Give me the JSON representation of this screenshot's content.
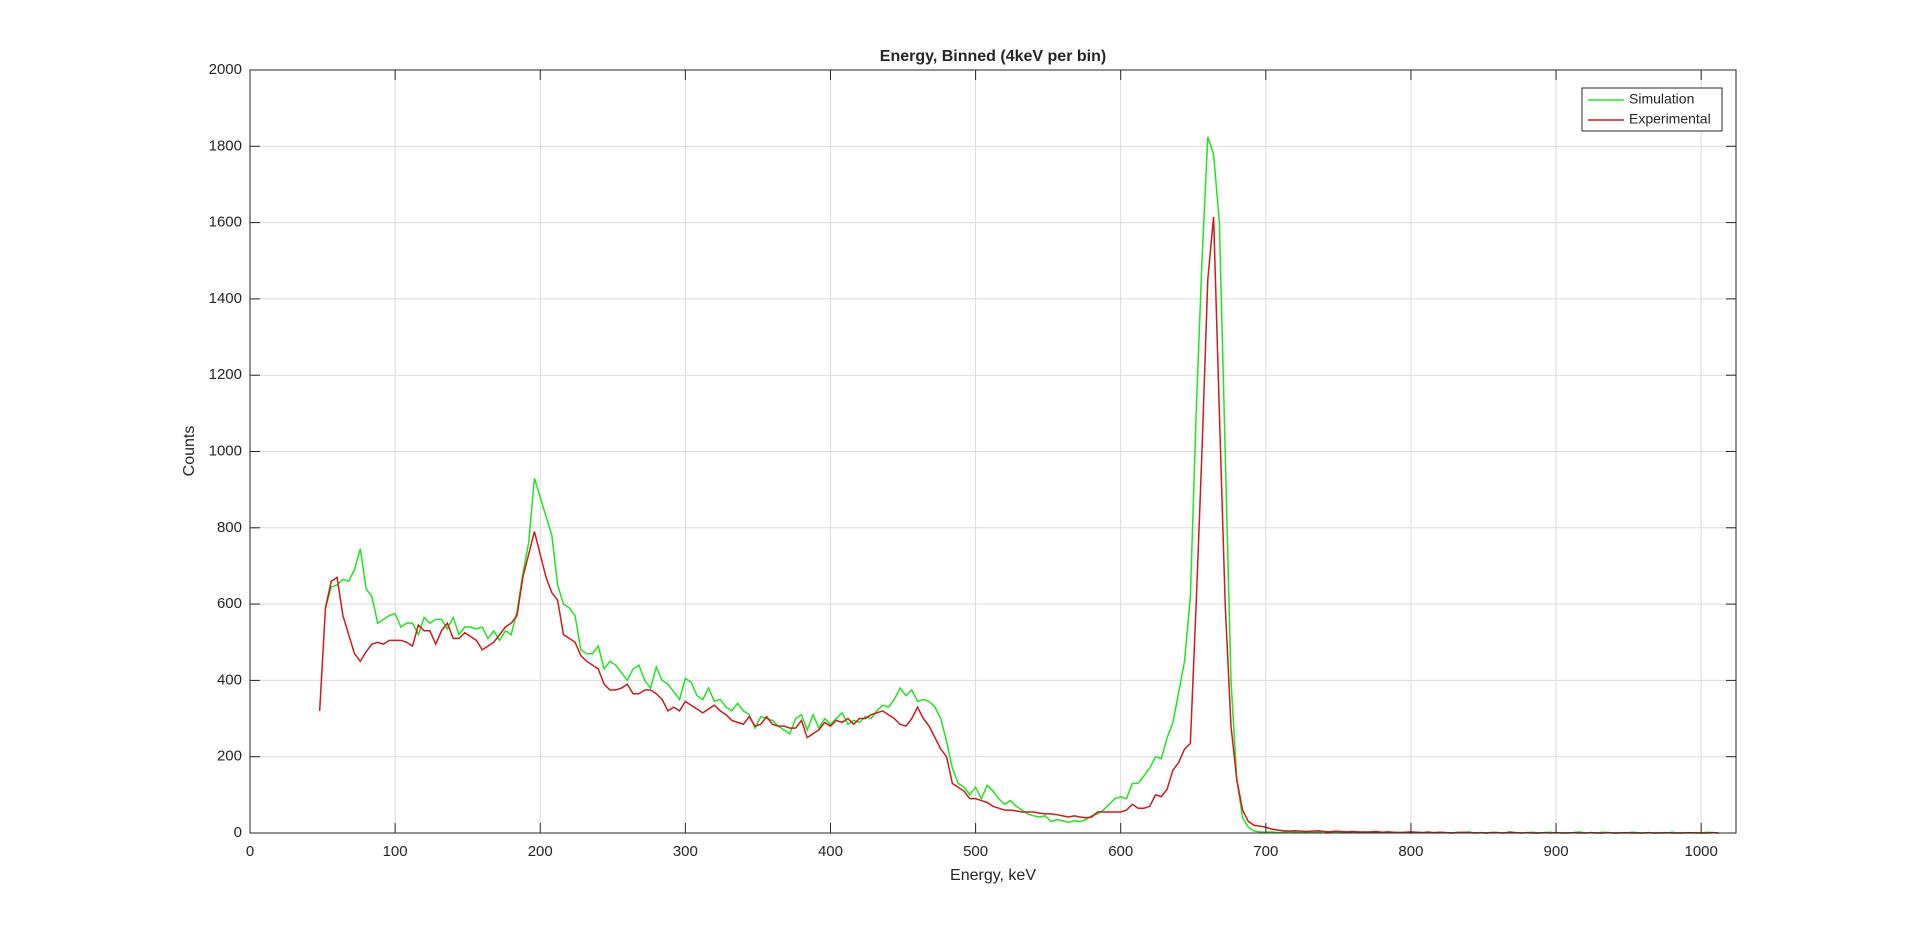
{
  "chart_data": {
    "type": "line",
    "title": "Energy, Binned (4keV per bin)",
    "x_label": "Energy, keV",
    "y_label": "Counts",
    "xlim": [
      0,
      1024
    ],
    "ylim": [
      0,
      2000
    ],
    "xticks": [
      0,
      100,
      200,
      300,
      400,
      500,
      600,
      700,
      800,
      900,
      1000
    ],
    "yticks": [
      0,
      200,
      400,
      600,
      800,
      1000,
      1200,
      1400,
      1600,
      1800,
      2000
    ],
    "grid": true,
    "legend": "upper-right",
    "x": [
      48,
      52,
      56,
      60,
      64,
      68,
      72,
      76,
      80,
      84,
      88,
      92,
      96,
      100,
      104,
      108,
      112,
      116,
      120,
      124,
      128,
      132,
      136,
      140,
      144,
      148,
      152,
      156,
      160,
      164,
      168,
      172,
      176,
      180,
      184,
      188,
      192,
      196,
      200,
      204,
      208,
      212,
      216,
      220,
      224,
      228,
      232,
      236,
      240,
      244,
      248,
      252,
      256,
      260,
      264,
      268,
      272,
      276,
      280,
      284,
      288,
      292,
      296,
      300,
      304,
      308,
      312,
      316,
      320,
      324,
      328,
      332,
      336,
      340,
      344,
      348,
      352,
      356,
      360,
      364,
      368,
      372,
      376,
      380,
      384,
      388,
      392,
      396,
      400,
      404,
      408,
      412,
      416,
      420,
      424,
      428,
      432,
      436,
      440,
      444,
      448,
      452,
      456,
      460,
      464,
      468,
      472,
      476,
      480,
      484,
      488,
      492,
      496,
      500,
      504,
      508,
      512,
      516,
      520,
      524,
      528,
      532,
      536,
      540,
      544,
      548,
      552,
      556,
      560,
      564,
      568,
      572,
      576,
      580,
      584,
      588,
      592,
      596,
      600,
      604,
      608,
      612,
      616,
      620,
      624,
      628,
      632,
      636,
      640,
      644,
      648,
      652,
      656,
      660,
      664,
      668,
      672,
      676,
      680,
      684,
      688,
      692,
      696,
      700,
      704,
      708,
      712,
      716,
      720,
      724,
      728,
      732,
      736,
      740,
      744,
      748,
      752,
      756,
      760,
      764,
      768,
      772,
      776,
      780,
      784,
      788,
      792,
      796,
      800,
      804,
      808,
      812,
      816,
      820,
      824,
      828,
      832,
      836,
      840,
      844,
      848,
      852,
      856,
      860,
      864,
      868,
      872,
      876,
      880,
      884,
      888,
      892,
      896,
      900,
      904,
      908,
      912,
      916,
      920,
      924,
      928,
      932,
      936,
      940,
      944,
      948,
      952,
      956,
      960,
      964,
      968,
      972,
      976,
      980,
      984,
      988,
      992,
      996,
      1000,
      1004,
      1008,
      1012
    ],
    "series": [
      {
        "name": "Simulation",
        "color": "#1ee61e",
        "values": [
          null,
          590,
          645,
          650,
          665,
          660,
          690,
          745,
          640,
          620,
          550,
          560,
          570,
          575,
          540,
          550,
          550,
          520,
          565,
          550,
          560,
          560,
          535,
          565,
          520,
          540,
          540,
          535,
          540,
          510,
          530,
          505,
          530,
          520,
          580,
          680,
          760,
          930,
          880,
          830,
          780,
          650,
          600,
          590,
          570,
          480,
          470,
          470,
          490,
          430,
          450,
          440,
          420,
          400,
          430,
          440,
          400,
          380,
          435,
          400,
          390,
          370,
          350,
          405,
          395,
          360,
          350,
          380,
          345,
          350,
          330,
          320,
          340,
          320,
          310,
          275,
          305,
          300,
          295,
          280,
          270,
          260,
          300,
          310,
          270,
          310,
          275,
          300,
          285,
          300,
          315,
          285,
          295,
          290,
          305,
          300,
          320,
          335,
          330,
          350,
          380,
          360,
          375,
          345,
          350,
          345,
          330,
          300,
          240,
          170,
          130,
          120,
          100,
          120,
          90,
          125,
          110,
          90,
          75,
          85,
          70,
          60,
          50,
          45,
          42,
          45,
          30,
          35,
          32,
          28,
          32,
          30,
          35,
          45,
          50,
          60,
          75,
          90,
          95,
          90,
          130,
          130,
          150,
          170,
          200,
          195,
          250,
          290,
          370,
          450,
          620,
          1100,
          1500,
          1825,
          1780,
          1600,
          1000,
          400,
          140,
          40,
          15,
          5,
          3,
          2,
          3,
          1,
          2,
          4,
          2,
          1,
          3,
          1,
          2,
          5,
          1,
          2,
          3,
          1,
          2,
          1,
          4,
          1,
          2,
          1,
          3,
          1,
          2,
          1,
          0,
          2,
          1,
          3,
          0,
          2,
          1,
          0,
          2,
          1,
          3,
          0,
          1,
          0,
          2,
          1,
          0,
          3,
          1,
          0,
          1,
          2,
          0,
          1,
          2,
          0,
          1,
          0,
          1,
          3,
          0,
          1,
          0,
          2,
          1,
          0,
          1,
          0,
          2,
          1,
          0,
          1,
          0,
          1,
          0,
          2,
          0,
          1,
          0,
          1,
          0,
          2,
          1,
          0
        ]
      },
      {
        "name": "Experimental",
        "color": "#d11a1a",
        "values": [
          320,
          590,
          660,
          670,
          570,
          520,
          470,
          450,
          475,
          495,
          500,
          495,
          505,
          505,
          505,
          500,
          490,
          545,
          530,
          530,
          495,
          530,
          550,
          510,
          510,
          525,
          515,
          505,
          480,
          490,
          500,
          520,
          540,
          550,
          570,
          670,
          730,
          790,
          730,
          670,
          630,
          610,
          520,
          510,
          500,
          465,
          450,
          440,
          430,
          390,
          375,
          375,
          380,
          390,
          365,
          365,
          375,
          375,
          365,
          350,
          320,
          330,
          320,
          345,
          335,
          325,
          315,
          325,
          335,
          320,
          310,
          295,
          290,
          285,
          305,
          280,
          285,
          305,
          285,
          280,
          280,
          275,
          275,
          295,
          250,
          260,
          270,
          290,
          280,
          295,
          290,
          300,
          285,
          300,
          300,
          310,
          315,
          320,
          310,
          300,
          285,
          280,
          300,
          330,
          300,
          280,
          250,
          220,
          200,
          130,
          120,
          110,
          90,
          90,
          85,
          80,
          70,
          65,
          60,
          60,
          58,
          55,
          55,
          55,
          52,
          50,
          50,
          48,
          45,
          42,
          45,
          42,
          40,
          42,
          55,
          55,
          55,
          55,
          55,
          60,
          75,
          65,
          65,
          70,
          100,
          95,
          115,
          165,
          185,
          220,
          235,
          600,
          1000,
          1450,
          1615,
          1100,
          600,
          280,
          140,
          60,
          30,
          20,
          18,
          15,
          10,
          8,
          6,
          5,
          6,
          5,
          4,
          5,
          6,
          4,
          3,
          5,
          4,
          3,
          4,
          3,
          2,
          3,
          4,
          2,
          3,
          2,
          1,
          2,
          3,
          2,
          1,
          2,
          1,
          2,
          1,
          0,
          1,
          2,
          1,
          0,
          1,
          0,
          1,
          1,
          0,
          2,
          1,
          0,
          1,
          0,
          0,
          1,
          0,
          1,
          0,
          0,
          1,
          0,
          0,
          1,
          0,
          0,
          1,
          0,
          0,
          1,
          0,
          0,
          0,
          1,
          0,
          0,
          1,
          0,
          0,
          0,
          1,
          0,
          0,
          0,
          1,
          0
        ]
      }
    ]
  }
}
